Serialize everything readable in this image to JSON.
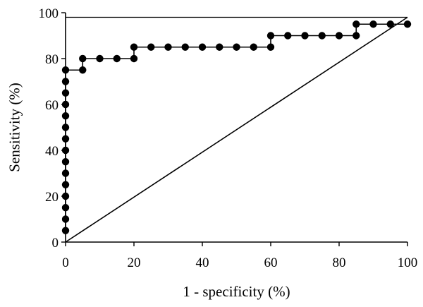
{
  "chart_data": {
    "type": "line",
    "xlabel": "1 - specificity (%)",
    "ylabel": "Sensitivity (%)",
    "xlim": [
      0,
      100
    ],
    "ylim": [
      0,
      100
    ],
    "x_ticks": [
      0,
      20,
      40,
      60,
      80,
      100
    ],
    "y_ticks": [
      0,
      20,
      40,
      60,
      80,
      100
    ],
    "grid": false,
    "series": [
      {
        "kind": "step",
        "marker": "circle",
        "color": "#000000",
        "points": [
          [
            0,
            5
          ],
          [
            0,
            10
          ],
          [
            0,
            15
          ],
          [
            0,
            20
          ],
          [
            0,
            25
          ],
          [
            0,
            30
          ],
          [
            0,
            35
          ],
          [
            0,
            40
          ],
          [
            0,
            45
          ],
          [
            0,
            50
          ],
          [
            0,
            55
          ],
          [
            0,
            60
          ],
          [
            0,
            65
          ],
          [
            0,
            70
          ],
          [
            0,
            75
          ],
          [
            5,
            75
          ],
          [
            5,
            80
          ],
          [
            10,
            80
          ],
          [
            15,
            80
          ],
          [
            20,
            80
          ],
          [
            20,
            85
          ],
          [
            25,
            85
          ],
          [
            30,
            85
          ],
          [
            35,
            85
          ],
          [
            40,
            85
          ],
          [
            45,
            85
          ],
          [
            50,
            85
          ],
          [
            55,
            85
          ],
          [
            60,
            85
          ],
          [
            60,
            90
          ],
          [
            65,
            90
          ],
          [
            70,
            90
          ],
          [
            75,
            90
          ],
          [
            80,
            90
          ],
          [
            85,
            90
          ],
          [
            85,
            95
          ],
          [
            90,
            95
          ],
          [
            95,
            95
          ],
          [
            100,
            95
          ]
        ]
      },
      {
        "kind": "reference",
        "marker": "none",
        "color": "#000000",
        "points": [
          [
            0,
            0
          ],
          [
            100,
            98
          ]
        ]
      }
    ]
  }
}
